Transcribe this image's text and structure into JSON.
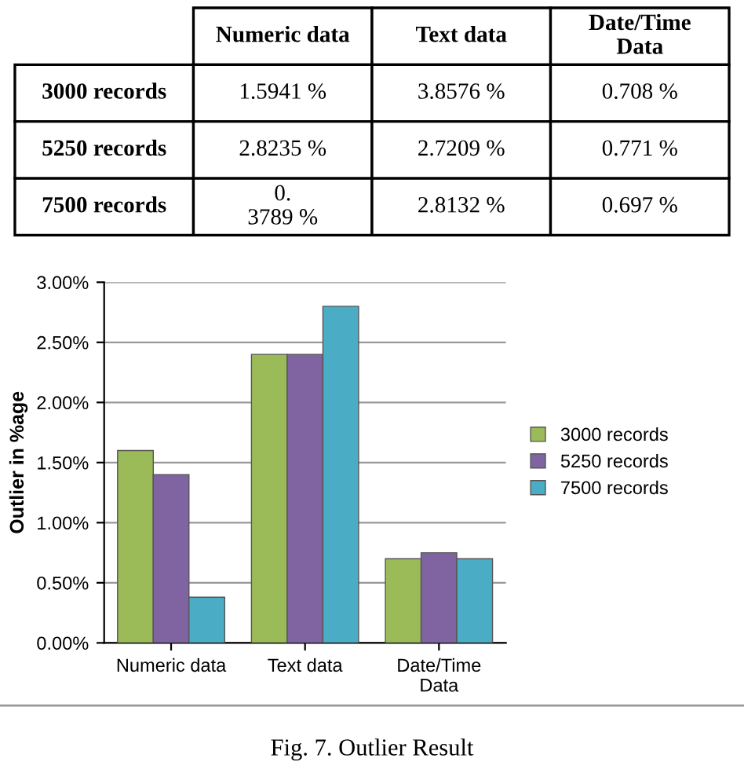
{
  "chart_data": [
    {
      "type": "other",
      "categories": [
        "Numeric data",
        "Text data",
        "Date/Time\nData"
      ],
      "y_categories": [
        "3000 records",
        "5250 records",
        "7500 records"
      ],
      "cell_labels": [
        [
          "1.5941 %",
          "3.8576 %",
          "0.708 %"
        ],
        [
          "2.8235 %",
          "2.7209 %",
          "0.771 %"
        ],
        [
          "0.\n3789 %",
          "2.8132 %",
          "0.697 %"
        ]
      ]
    },
    {
      "type": "bar",
      "categories": [
        "Numeric data",
        "Text data",
        "Date/Time\nData"
      ],
      "series": [
        {
          "name": "3000 records",
          "color": "#9bbb59",
          "values": [
            1.6,
            2.4,
            0.7
          ]
        },
        {
          "name": "5250 records",
          "color": "#8064a2",
          "values": [
            1.4,
            2.4,
            0.75
          ]
        },
        {
          "name": "7500 records",
          "color": "#4bacc6",
          "values": [
            0.38,
            2.8,
            0.7
          ]
        }
      ],
      "ylabel": "Outlier in %age",
      "ylim": [
        0,
        3
      ],
      "yticks": [
        {
          "value": 0,
          "label": "0.00%"
        },
        {
          "value": 0.5,
          "label": "0.50%"
        },
        {
          "value": 1,
          "label": "1.00%"
        },
        {
          "value": 1.5,
          "label": "1.50%"
        },
        {
          "value": 2,
          "label": "2.00%"
        },
        {
          "value": 2.5,
          "label": "2.50%"
        },
        {
          "value": 3,
          "label": "3.00%"
        }
      ],
      "grid": "y",
      "legend": "right",
      "annotations": [
        "Fig. 7. Outlier Result"
      ]
    }
  ]
}
